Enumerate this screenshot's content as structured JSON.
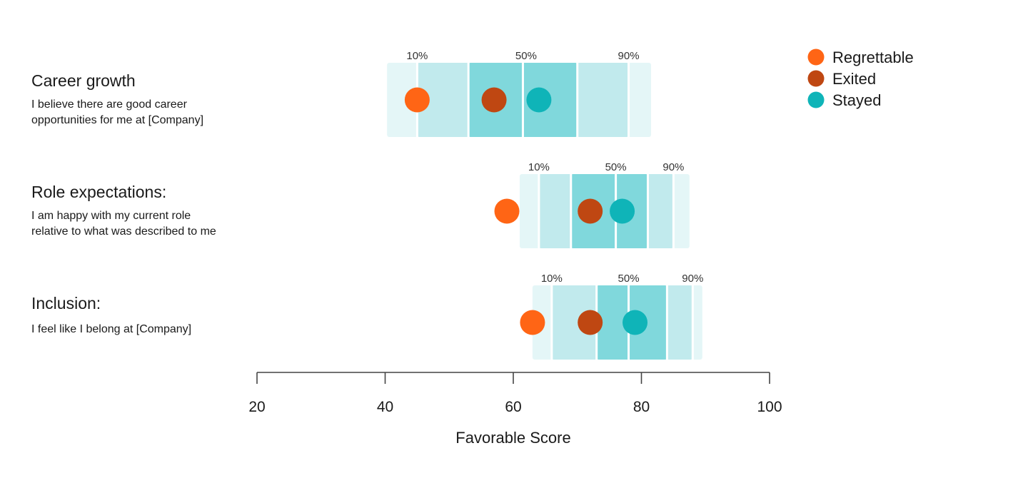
{
  "chart_data": {
    "type": "dot-percentile-bands",
    "xlabel": "Favorable Score",
    "xlim": [
      20,
      100
    ],
    "xticks": [
      20,
      40,
      60,
      80,
      100
    ],
    "grid": false,
    "legend_position": "top-right",
    "series": [
      {
        "name": "Regrettable",
        "color": "#ff6515"
      },
      {
        "name": "Exited",
        "color": "#bf4712"
      },
      {
        "name": "Stayed",
        "color": "#0fb4b8"
      }
    ],
    "band_colors": {
      "outer": "#e4f6f7",
      "mid": "#c1eaed",
      "inner": "#80d8dc"
    },
    "percentile_labels": [
      "10%",
      "50%",
      "90%"
    ],
    "items": [
      {
        "title": "Career growth",
        "description": [
          "I believe there are good career",
          "opportunities for me at [Company]"
        ],
        "bands": [
          40.3,
          45,
          53,
          61.5,
          70,
          78,
          81.5
        ],
        "label_positions": [
          45,
          62,
          78
        ],
        "values": {
          "Regrettable": 45,
          "Exited": 57,
          "Stayed": 64
        }
      },
      {
        "title": "Role expectations:",
        "description": [
          "I am happy with my current role",
          "relative to what was described to me"
        ],
        "bands": [
          61,
          64,
          69,
          76,
          81,
          85,
          87.5
        ],
        "label_positions": [
          64,
          76,
          85
        ],
        "values": {
          "Regrettable": 59,
          "Exited": 72,
          "Stayed": 77
        }
      },
      {
        "title": "Inclusion:",
        "description": [
          "I feel like I belong at [Company]"
        ],
        "bands": [
          63,
          66,
          73,
          78,
          84,
          88,
          89.5
        ],
        "label_positions": [
          66,
          78,
          88
        ],
        "values": {
          "Regrettable": 63,
          "Exited": 72,
          "Stayed": 79
        }
      }
    ]
  }
}
